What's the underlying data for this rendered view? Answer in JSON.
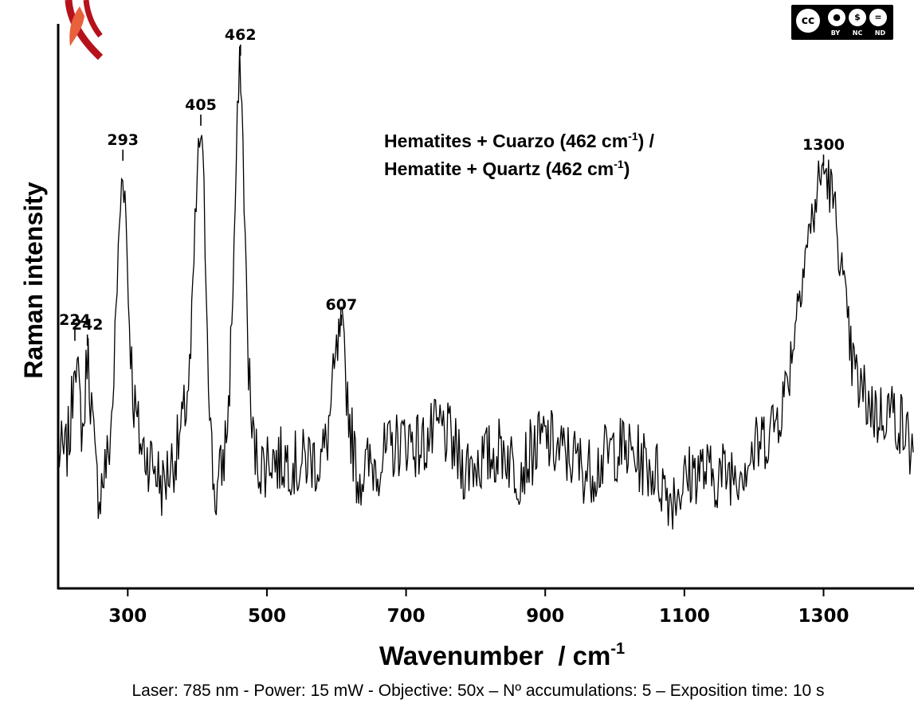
{
  "chart_data": {
    "type": "line",
    "xlabel": "Wavenumber  / cm",
    "xlabel_sup": "-1",
    "ylabel": "Raman  intensity",
    "x_ticks": [
      "300",
      "500",
      "700",
      "900",
      "1100",
      "1300"
    ],
    "xlim": [
      200,
      1430
    ],
    "ylim": [
      0,
      100
    ],
    "grid": false,
    "series": [
      {
        "points": [
          [
            200,
            21
          ],
          [
            210,
            20
          ],
          [
            218,
            26
          ],
          [
            224,
            43
          ],
          [
            230,
            32
          ],
          [
            236,
            24
          ],
          [
            242,
            42
          ],
          [
            248,
            30
          ],
          [
            254,
            16
          ],
          [
            260,
            13
          ],
          [
            266,
            17
          ],
          [
            272,
            20
          ],
          [
            278,
            30
          ],
          [
            284,
            52
          ],
          [
            290,
            72
          ],
          [
            293,
            79
          ],
          [
            297,
            70
          ],
          [
            302,
            48
          ],
          [
            308,
            32
          ],
          [
            314,
            26
          ],
          [
            320,
            22
          ],
          [
            330,
            20
          ],
          [
            340,
            18
          ],
          [
            350,
            14
          ],
          [
            360,
            18
          ],
          [
            370,
            21
          ],
          [
            380,
            27
          ],
          [
            390,
            38
          ],
          [
            396,
            62
          ],
          [
            400,
            76
          ],
          [
            405,
            86
          ],
          [
            410,
            70
          ],
          [
            415,
            44
          ],
          [
            420,
            22
          ],
          [
            425,
            12
          ],
          [
            430,
            14
          ],
          [
            438,
            20
          ],
          [
            445,
            30
          ],
          [
            452,
            58
          ],
          [
            458,
            88
          ],
          [
            462,
            100
          ],
          [
            466,
            80
          ],
          [
            472,
            45
          ],
          [
            478,
            25
          ],
          [
            485,
            20
          ],
          [
            495,
            18
          ],
          [
            505,
            21
          ],
          [
            515,
            19
          ],
          [
            530,
            20
          ],
          [
            545,
            18
          ],
          [
            560,
            20
          ],
          [
            575,
            19
          ],
          [
            585,
            22
          ],
          [
            592,
            30
          ],
          [
            600,
            40
          ],
          [
            607,
            46
          ],
          [
            613,
            37
          ],
          [
            620,
            26
          ],
          [
            630,
            16
          ],
          [
            645,
            18
          ],
          [
            660,
            19
          ],
          [
            675,
            21
          ],
          [
            690,
            23
          ],
          [
            705,
            24
          ],
          [
            720,
            22
          ],
          [
            735,
            24
          ],
          [
            750,
            26
          ],
          [
            765,
            23
          ],
          [
            780,
            18
          ],
          [
            800,
            19
          ],
          [
            820,
            20
          ],
          [
            840,
            22
          ],
          [
            860,
            17
          ],
          [
            880,
            21
          ],
          [
            900,
            24
          ],
          [
            920,
            21
          ],
          [
            940,
            20
          ],
          [
            960,
            17
          ],
          [
            980,
            19
          ],
          [
            1000,
            22
          ],
          [
            1020,
            21
          ],
          [
            1040,
            19
          ],
          [
            1060,
            17
          ],
          [
            1080,
            12
          ],
          [
            1100,
            15
          ],
          [
            1120,
            18
          ],
          [
            1140,
            16
          ],
          [
            1160,
            17
          ],
          [
            1180,
            18
          ],
          [
            1200,
            21
          ],
          [
            1215,
            24
          ],
          [
            1230,
            27
          ],
          [
            1245,
            33
          ],
          [
            1255,
            42
          ],
          [
            1265,
            54
          ],
          [
            1275,
            62
          ],
          [
            1285,
            68
          ],
          [
            1292,
            74
          ],
          [
            1300,
            78
          ],
          [
            1308,
            75
          ],
          [
            1315,
            70
          ],
          [
            1322,
            63
          ],
          [
            1330,
            52
          ],
          [
            1340,
            40
          ],
          [
            1350,
            34
          ],
          [
            1360,
            32
          ],
          [
            1370,
            30
          ],
          [
            1380,
            28
          ],
          [
            1390,
            30
          ],
          [
            1400,
            29
          ],
          [
            1410,
            27
          ],
          [
            1420,
            24
          ],
          [
            1430,
            20
          ]
        ]
      }
    ],
    "peaks": [
      {
        "label": "224",
        "x": 224,
        "y": 43
      },
      {
        "label": "242",
        "x": 242,
        "y": 42
      },
      {
        "label": "293",
        "x": 293,
        "y": 79
      },
      {
        "label": "405",
        "x": 405,
        "y": 86
      },
      {
        "label": "462",
        "x": 462,
        "y": 100
      },
      {
        "label": "607",
        "x": 607,
        "y": 46
      },
      {
        "label": "1300",
        "x": 1300,
        "y": 78
      }
    ],
    "annotation": {
      "line1_pre": "Hematites + Cuarzo (462 cm",
      "line1_sup": "-1",
      "line1_post": ") /",
      "line2_pre": "Hematite + Quartz (462 cm",
      "line2_sup": "-1",
      "line2_post": ")"
    },
    "line_color": "#000000"
  },
  "footer": "Laser: 785 nm - Power: 15 mW - Objective: 50x – Nº accumulations: 5 – Exposition time: 10 s",
  "license": {
    "main": "cc",
    "tags": [
      "BY",
      "NC",
      "ND"
    ]
  },
  "logo": {
    "color": "#b5121b",
    "accent": "#e8603c"
  }
}
